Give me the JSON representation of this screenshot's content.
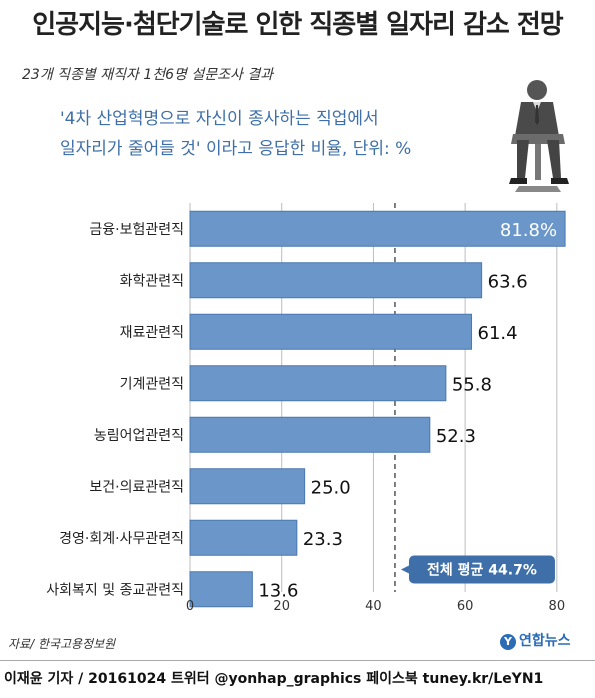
{
  "header": {
    "title": "인공지능·첨단기술로 인한 직종별 일자리 감소 전망",
    "subtitle": "23개 직종별 재직자 1천6명 설문조사 결과",
    "question_line1": "'4차 산업혁명으로 자신이 종사하는 직업에서",
    "question_line2": "일자리가 줄어들 것' 이라고 응답한 비율, 단위: %"
  },
  "chart_data": {
    "type": "bar",
    "orientation": "horizontal",
    "categories": [
      "금융·보험관련직",
      "화학관련직",
      "재료관련직",
      "기계관련직",
      "농림어업관련직",
      "보건·의료관련직",
      "경영·회계·사무관련직",
      "사회복지 및 종교관련직"
    ],
    "values": [
      81.8,
      63.6,
      61.4,
      55.8,
      52.3,
      25.0,
      23.3,
      13.6
    ],
    "value_labels": [
      "81.8%",
      "63.6",
      "61.4",
      "55.8",
      "52.3",
      "25.0",
      "23.3",
      "13.6"
    ],
    "xlim": [
      0,
      82
    ],
    "x_ticks": [
      "0",
      "20",
      "40",
      "60",
      "80"
    ],
    "x_tick_values": [
      0,
      20,
      40,
      60,
      80
    ],
    "average_value": 44.7,
    "average_label": "전체 평균 44.7%",
    "grid": true,
    "colors": {
      "bar": "#6a96c9",
      "bar_edge": "#4a78b0",
      "grid": "#bdbdbd",
      "avg_line": "#555555",
      "avg_box": "#3e6fa8"
    }
  },
  "footer": {
    "source": "자료/ 한국고용정보원",
    "logo": "연합뉴스",
    "logo_mark": "Y",
    "credit": "이재윤 기자 / 20161024  트위터 @yonhap_graphics  페이스북 tuney.kr/LeYN1"
  },
  "icons": {
    "figure": "seated-businessman-icon"
  }
}
